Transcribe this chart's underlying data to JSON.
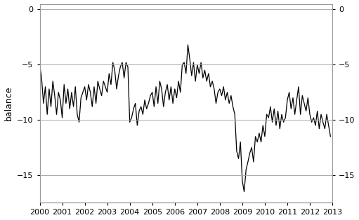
{
  "title": "",
  "ylabel": "balance",
  "xlim": [
    2000.0,
    2013.0
  ],
  "ylim": [
    -17.5,
    0.5
  ],
  "yticks": [
    0,
    -5,
    -10,
    -15
  ],
  "line_color": "#000000",
  "line_width": 0.9,
  "background_color": "#ffffff",
  "grid_color": "#aaaaaa",
  "dates": [
    2000.0,
    2000.083,
    2000.167,
    2000.25,
    2000.333,
    2000.417,
    2000.5,
    2000.583,
    2000.667,
    2000.75,
    2000.833,
    2000.917,
    2001.0,
    2001.083,
    2001.167,
    2001.25,
    2001.333,
    2001.417,
    2001.5,
    2001.583,
    2001.667,
    2001.75,
    2001.833,
    2001.917,
    2002.0,
    2002.083,
    2002.167,
    2002.25,
    2002.333,
    2002.417,
    2002.5,
    2002.583,
    2002.667,
    2002.75,
    2002.833,
    2002.917,
    2003.0,
    2003.083,
    2003.167,
    2003.25,
    2003.333,
    2003.417,
    2003.5,
    2003.583,
    2003.667,
    2003.75,
    2003.833,
    2003.917,
    2004.0,
    2004.083,
    2004.167,
    2004.25,
    2004.333,
    2004.417,
    2004.5,
    2004.583,
    2004.667,
    2004.75,
    2004.833,
    2004.917,
    2005.0,
    2005.083,
    2005.167,
    2005.25,
    2005.333,
    2005.417,
    2005.5,
    2005.583,
    2005.667,
    2005.75,
    2005.833,
    2005.917,
    2006.0,
    2006.083,
    2006.167,
    2006.25,
    2006.333,
    2006.417,
    2006.5,
    2006.583,
    2006.667,
    2006.75,
    2006.833,
    2006.917,
    2007.0,
    2007.083,
    2007.167,
    2007.25,
    2007.333,
    2007.417,
    2007.5,
    2007.583,
    2007.667,
    2007.75,
    2007.833,
    2007.917,
    2008.0,
    2008.083,
    2008.167,
    2008.25,
    2008.333,
    2008.417,
    2008.5,
    2008.583,
    2008.667,
    2008.75,
    2008.833,
    2008.917,
    2009.0,
    2009.083,
    2009.167,
    2009.25,
    2009.333,
    2009.417,
    2009.5,
    2009.583,
    2009.667,
    2009.75,
    2009.833,
    2009.917,
    2010.0,
    2010.083,
    2010.167,
    2010.25,
    2010.333,
    2010.417,
    2010.5,
    2010.583,
    2010.667,
    2010.75,
    2010.833,
    2010.917,
    2011.0,
    2011.083,
    2011.167,
    2011.25,
    2011.333,
    2011.417,
    2011.5,
    2011.583,
    2011.667,
    2011.75,
    2011.833,
    2011.917,
    2012.0,
    2012.083,
    2012.167,
    2012.25,
    2012.333,
    2012.417,
    2012.5,
    2012.583,
    2012.667,
    2012.75,
    2012.833,
    2012.917
  ],
  "values": [
    -5.0,
    -6.2,
    -8.5,
    -7.0,
    -9.5,
    -7.2,
    -8.8,
    -6.5,
    -7.8,
    -9.5,
    -7.5,
    -8.2,
    -9.8,
    -6.8,
    -8.5,
    -7.2,
    -9.0,
    -7.5,
    -8.8,
    -7.0,
    -9.5,
    -10.2,
    -8.0,
    -7.5,
    -7.0,
    -8.2,
    -6.8,
    -7.5,
    -8.8,
    -7.0,
    -8.5,
    -6.5,
    -7.2,
    -7.8,
    -6.5,
    -7.0,
    -7.5,
    -5.8,
    -6.8,
    -4.8,
    -5.5,
    -7.2,
    -6.0,
    -5.2,
    -4.8,
    -6.2,
    -4.8,
    -5.2,
    -10.2,
    -9.8,
    -9.0,
    -8.5,
    -10.5,
    -9.2,
    -8.8,
    -9.5,
    -8.2,
    -9.0,
    -8.5,
    -7.8,
    -7.5,
    -8.8,
    -7.0,
    -8.5,
    -6.5,
    -7.2,
    -8.8,
    -7.5,
    -6.8,
    -8.2,
    -7.0,
    -8.5,
    -7.2,
    -8.0,
    -6.5,
    -7.5,
    -5.0,
    -4.8,
    -5.8,
    -3.2,
    -4.5,
    -6.0,
    -4.8,
    -6.5,
    -5.0,
    -5.8,
    -4.8,
    -6.2,
    -5.5,
    -6.5,
    -5.8,
    -7.0,
    -6.5,
    -7.2,
    -8.5,
    -7.5,
    -7.2,
    -7.8,
    -7.0,
    -8.2,
    -7.5,
    -8.5,
    -7.8,
    -8.8,
    -9.5,
    -12.8,
    -13.5,
    -12.0,
    -15.5,
    -16.5,
    -14.5,
    -13.8,
    -13.0,
    -12.5,
    -13.8,
    -11.5,
    -12.0,
    -11.2,
    -12.0,
    -10.5,
    -11.5,
    -9.5,
    -9.8,
    -8.8,
    -10.2,
    -9.0,
    -10.5,
    -9.2,
    -10.8,
    -9.5,
    -10.2,
    -9.8,
    -8.2,
    -7.5,
    -9.0,
    -8.0,
    -9.5,
    -8.2,
    -7.0,
    -9.5,
    -7.8,
    -8.5,
    -9.2,
    -8.0,
    -9.5,
    -10.2,
    -9.8,
    -10.5,
    -9.2,
    -10.8,
    -9.5,
    -10.2,
    -10.8,
    -9.5,
    -10.5,
    -11.5
  ]
}
